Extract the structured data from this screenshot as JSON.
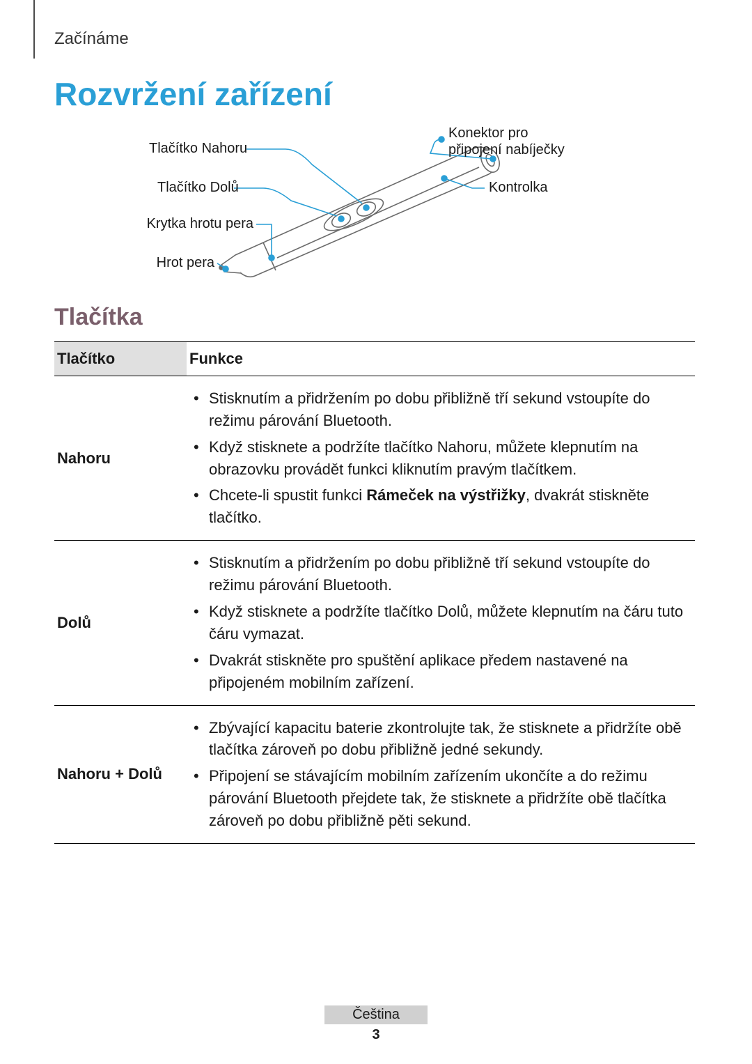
{
  "header": {
    "section": "Začínáme"
  },
  "title": "Rozvržení zařízení",
  "diagram": {
    "labels": {
      "up": "Tlačítko Nahoru",
      "down": "Tlačítko Dolů",
      "cap": "Krytka hrotu pera",
      "tip": "Hrot pera",
      "connector_l1": "Konektor pro",
      "connector_l2": "připojení nabíječky",
      "indicator": "Kontrolka"
    },
    "colors": {
      "pen_stroke": "#6b6b6b",
      "leader": "#2a9fd6",
      "dot": "#2a9fd6"
    }
  },
  "subheading": "Tlačítka",
  "table": {
    "header": {
      "col1": "Tlačítko",
      "col2": "Funkce"
    },
    "rows": [
      {
        "label": "Nahoru",
        "items": [
          {
            "pre": "Stisknutím a přidržením po dobu přibližně tří sekund vstoupíte do režimu párování Bluetooth."
          },
          {
            "pre": "Když stisknete a podržíte tlačítko Nahoru, můžete klepnutím na obrazovku provádět funkci kliknutím pravým tlačítkem."
          },
          {
            "pre": "Chcete-li spustit funkci ",
            "bold": "Rámeček na výstřižky",
            "post": ", dvakrát stiskněte tlačítko."
          }
        ]
      },
      {
        "label": "Dolů",
        "items": [
          {
            "pre": "Stisknutím a přidržením po dobu přibližně tří sekund vstoupíte do režimu párování Bluetooth."
          },
          {
            "pre": "Když stisknete a podržíte tlačítko Dolů, můžete klepnutím na čáru tuto čáru vymazat."
          },
          {
            "pre": "Dvakrát stiskněte pro spuštění aplikace předem nastavené na připojeném mobilním zařízení."
          }
        ]
      },
      {
        "label": "Nahoru + Dolů",
        "items": [
          {
            "pre": "Zbývající kapacitu baterie zkontrolujte tak, že stisknete a přidržíte obě tlačítka zároveň po dobu přibližně jedné sekundy."
          },
          {
            "pre": "Připojení se stávajícím mobilním zařízením ukončíte a do režimu párování Bluetooth přejdete tak, že stisknete a přidržíte obě tlačítka zároveň po dobu přibližně pěti sekund."
          }
        ]
      }
    ]
  },
  "footer": {
    "language": "Čeština",
    "page": "3"
  }
}
